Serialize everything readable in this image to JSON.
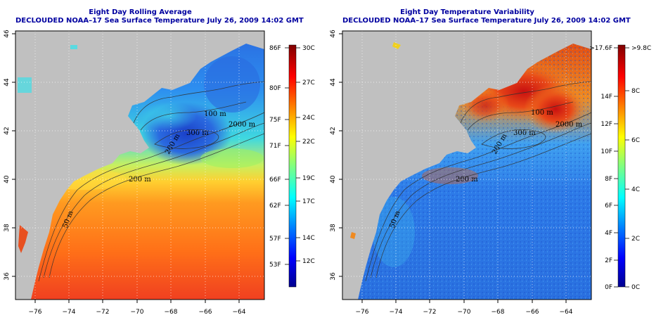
{
  "panels": [
    {
      "id": "avg",
      "title_line1": "Eight Day Rolling Average",
      "title_line2": "DECLOUDED NOAA–17 Sea Surface Temperature July 26, 2009 14:02 GMT",
      "colorbar_left_labels": [
        "86F",
        "80F",
        "75F",
        "71F",
        "66F",
        "62F",
        "57F",
        "53F"
      ],
      "colorbar_right_labels": [
        "30C",
        "27C",
        "24C",
        "22C",
        "19C",
        "17C",
        "14C",
        "12C"
      ],
      "contour_labels": [
        "200 m",
        "50 m",
        "200 m",
        "300 m",
        "2000 m",
        "100 m"
      ]
    },
    {
      "id": "var",
      "title_line1": "Eight Day Temperature Variability",
      "title_line2": "DECLOUDED NOAA–17 Sea Surface Temperature July 26, 2009 14:02 GMT",
      "colorbar_left_labels": [
        ">17.6F",
        "14F",
        "12F",
        "10F",
        "8F",
        "6F",
        "4F",
        "2F",
        "0F"
      ],
      "colorbar_right_labels": [
        ">9.8C",
        "8C",
        "6C",
        "4C",
        "2C",
        "0C"
      ],
      "contour_labels": [
        "200 m",
        "50 m",
        "200 m",
        "300 m",
        "2000 m",
        "100 m"
      ]
    }
  ],
  "axes": {
    "x_ticks": [
      "−76",
      "−74",
      "−72",
      "−70",
      "−68",
      "−66",
      "−64"
    ],
    "y_ticks": [
      "36",
      "38",
      "40",
      "42",
      "44",
      "46"
    ]
  },
  "colors": {
    "land": "#c0c0c0",
    "title": "#0000a0"
  }
}
